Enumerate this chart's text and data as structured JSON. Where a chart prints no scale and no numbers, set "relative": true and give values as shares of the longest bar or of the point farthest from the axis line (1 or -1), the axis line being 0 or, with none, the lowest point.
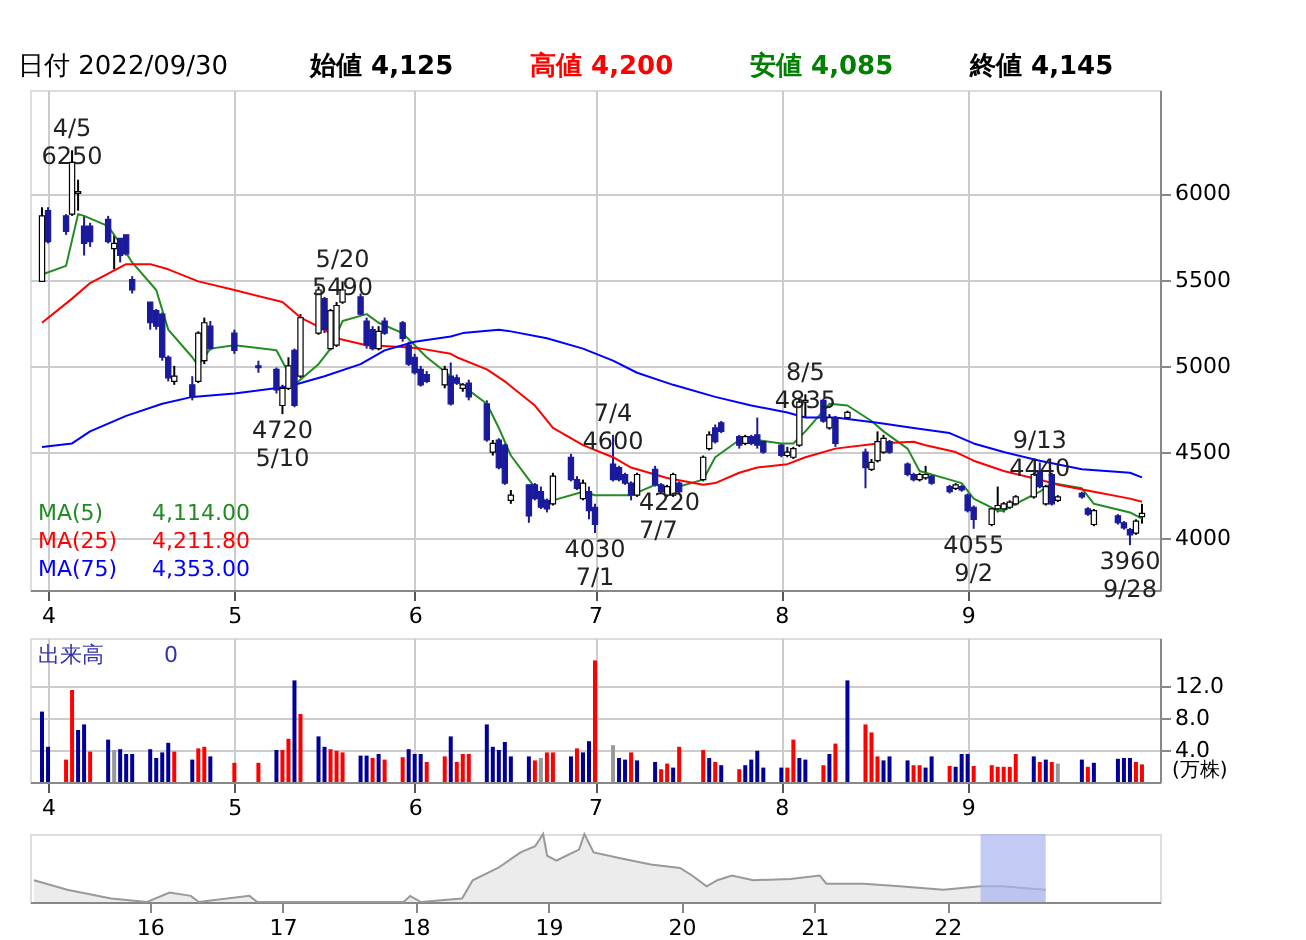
{
  "chart_data": [
    {
      "type": "candlestick",
      "title": "日付 2022/09/30",
      "annotations": [
        "始値 4,125",
        "高値 4,200",
        "安値 4,085",
        "終値 4,145",
        {
          "text": "4/5\n6250",
          "x": "2022-04-05",
          "y": 6250
        },
        {
          "text": "4720\n5/10",
          "x": "2022-05-10",
          "y": 4720
        },
        {
          "text": "5/20\n5490",
          "x": "2022-05-20",
          "y": 5490
        },
        {
          "text": "4030\n7/1",
          "x": "2022-07-01",
          "y": 4030
        },
        {
          "text": "7/4\n4600",
          "x": "2022-07-04",
          "y": 4600
        },
        {
          "text": "4220\n7/7",
          "x": "2022-07-07",
          "y": 4220
        },
        {
          "text": "8/5\n4835",
          "x": "2022-08-05",
          "y": 4835
        },
        {
          "text": "4055\n9/2",
          "x": "2022-09-02",
          "y": 4055
        },
        {
          "text": "9/13\n4440",
          "x": "2022-09-13",
          "y": 4440
        },
        {
          "text": "3960\n9/28",
          "x": "2022-09-28",
          "y": 3960
        },
        "4,114.00",
        "4,211.80",
        "4,353.00"
      ],
      "xlim": [
        "2022-03-29",
        "2022-10-03"
      ],
      "x": [
        "2022-03-31",
        "2022-04-01",
        "2022-04-04",
        "2022-04-05",
        "2022-04-06",
        "2022-04-07",
        "2022-04-08",
        "2022-04-11",
        "2022-04-12",
        "2022-04-13",
        "2022-04-14",
        "2022-04-15",
        "2022-04-18",
        "2022-04-19",
        "2022-04-20",
        "2022-04-21",
        "2022-04-22",
        "2022-04-25",
        "2022-04-26",
        "2022-04-27",
        "2022-04-28",
        "2022-05-02",
        "2022-05-06",
        "2022-05-09",
        "2022-05-10",
        "2022-05-11",
        "2022-05-12",
        "2022-05-13",
        "2022-05-16",
        "2022-05-17",
        "2022-05-18",
        "2022-05-19",
        "2022-05-20",
        "2022-05-23",
        "2022-05-24",
        "2022-05-25",
        "2022-05-26",
        "2022-05-27",
        "2022-05-30",
        "2022-05-31",
        "2022-06-01",
        "2022-06-02",
        "2022-06-03",
        "2022-06-06",
        "2022-06-07",
        "2022-06-08",
        "2022-06-09",
        "2022-06-10",
        "2022-06-13",
        "2022-06-14",
        "2022-06-15",
        "2022-06-16",
        "2022-06-17",
        "2022-06-20",
        "2022-06-21",
        "2022-06-22",
        "2022-06-23",
        "2022-06-24",
        "2022-06-27",
        "2022-06-28",
        "2022-06-29",
        "2022-06-30",
        "2022-07-01",
        "2022-07-04",
        "2022-07-05",
        "2022-07-06",
        "2022-07-07",
        "2022-07-08",
        "2022-07-11",
        "2022-07-12",
        "2022-07-13",
        "2022-07-14",
        "2022-07-15",
        "2022-07-19",
        "2022-07-20",
        "2022-07-21",
        "2022-07-22",
        "2022-07-25",
        "2022-07-26",
        "2022-07-27",
        "2022-07-28",
        "2022-07-29",
        "2022-08-01",
        "2022-08-02",
        "2022-08-03",
        "2022-08-04",
        "2022-08-05",
        "2022-08-08",
        "2022-08-09",
        "2022-08-10",
        "2022-08-12",
        "2022-08-15",
        "2022-08-16",
        "2022-08-17",
        "2022-08-18",
        "2022-08-19",
        "2022-08-22",
        "2022-08-23",
        "2022-08-24",
        "2022-08-25",
        "2022-08-26",
        "2022-08-29",
        "2022-08-30",
        "2022-08-31",
        "2022-09-01",
        "2022-09-02",
        "2022-09-05",
        "2022-09-06",
        "2022-09-07",
        "2022-09-08",
        "2022-09-09",
        "2022-09-12",
        "2022-09-13",
        "2022-09-14",
        "2022-09-15",
        "2022-09-16",
        "2022-09-20",
        "2022-09-21",
        "2022-09-22",
        "2022-09-26",
        "2022-09-27",
        "2022-09-28",
        "2022-09-29",
        "2022-09-30"
      ],
      "ohlc": [
        [
          5490,
          5920,
          5490,
          5870
        ],
        [
          5900,
          5920,
          5710,
          5720
        ],
        [
          5870,
          5880,
          5760,
          5780
        ],
        [
          5880,
          6250,
          5870,
          6180
        ],
        [
          6000,
          6080,
          5900,
          6010
        ],
        [
          5810,
          5870,
          5640,
          5710
        ],
        [
          5810,
          5830,
          5690,
          5720
        ],
        [
          5850,
          5870,
          5710,
          5720
        ],
        [
          5680,
          5760,
          5560,
          5710
        ],
        [
          5740,
          5740,
          5600,
          5640
        ],
        [
          5760,
          5760,
          5640,
          5650
        ],
        [
          5500,
          5520,
          5420,
          5440
        ],
        [
          5370,
          5370,
          5210,
          5250
        ],
        [
          5320,
          5330,
          5210,
          5230
        ],
        [
          5300,
          5310,
          5030,
          5050
        ],
        [
          5050,
          5060,
          4910,
          4930
        ],
        [
          4910,
          5000,
          4890,
          4940
        ],
        [
          4890,
          4940,
          4800,
          4820
        ],
        [
          4910,
          5200,
          4900,
          5190
        ],
        [
          5030,
          5280,
          5010,
          5250
        ],
        [
          5230,
          5260,
          5090,
          5100
        ],
        [
          5190,
          5210,
          5070,
          5090
        ],
        [
          5000,
          5030,
          4960,
          4990
        ],
        [
          4980,
          4990,
          4840,
          4860
        ],
        [
          4770,
          4890,
          4720,
          4870
        ],
        [
          4870,
          5050,
          4860,
          5000
        ],
        [
          5090,
          5100,
          4760,
          4770
        ],
        [
          4940,
          5300,
          4930,
          5280
        ],
        [
          5190,
          5460,
          5180,
          5440
        ],
        [
          5390,
          5400,
          5190,
          5210
        ],
        [
          5100,
          5330,
          5090,
          5320
        ],
        [
          5120,
          5370,
          5110,
          5350
        ],
        [
          5370,
          5490,
          5360,
          5440
        ],
        [
          5400,
          5420,
          5290,
          5300
        ],
        [
          5260,
          5280,
          5100,
          5120
        ],
        [
          5210,
          5230,
          5090,
          5100
        ],
        [
          5100,
          5230,
          5090,
          5200
        ],
        [
          5260,
          5280,
          5180,
          5190
        ],
        [
          5250,
          5260,
          5140,
          5160
        ],
        [
          5120,
          5140,
          5000,
          5010
        ],
        [
          5050,
          5070,
          4950,
          4960
        ],
        [
          4980,
          5000,
          4880,
          4890
        ],
        [
          4950,
          4970,
          4900,
          4910
        ],
        [
          4890,
          5000,
          4870,
          4980
        ],
        [
          4940,
          5020,
          4770,
          4780
        ],
        [
          4930,
          4950,
          4890,
          4900
        ],
        [
          4870,
          4900,
          4850,
          4890
        ],
        [
          4900,
          4920,
          4800,
          4820
        ],
        [
          4780,
          4800,
          4560,
          4570
        ],
        [
          4500,
          4570,
          4480,
          4550
        ],
        [
          4570,
          4580,
          4400,
          4410
        ],
        [
          4540,
          4550,
          4310,
          4320
        ],
        [
          4220,
          4280,
          4200,
          4250
        ],
        [
          4310,
          4310,
          4090,
          4130
        ],
        [
          4310,
          4320,
          4220,
          4230
        ],
        [
          4270,
          4300,
          4170,
          4180
        ],
        [
          4220,
          4230,
          4150,
          4170
        ],
        [
          4200,
          4380,
          4190,
          4360
        ],
        [
          4470,
          4490,
          4330,
          4340
        ],
        [
          4340,
          4360,
          4280,
          4290
        ],
        [
          4230,
          4340,
          4220,
          4320
        ],
        [
          4270,
          4300,
          4110,
          4160
        ],
        [
          4180,
          4200,
          4030,
          4080
        ],
        [
          4430,
          4600,
          4330,
          4340
        ],
        [
          4410,
          4420,
          4330,
          4340
        ],
        [
          4370,
          4380,
          4310,
          4320
        ],
        [
          4320,
          4330,
          4220,
          4250
        ],
        [
          4250,
          4380,
          4240,
          4370
        ],
        [
          4400,
          4420,
          4300,
          4310
        ],
        [
          4310,
          4320,
          4260,
          4270
        ],
        [
          4250,
          4310,
          4240,
          4300
        ],
        [
          4250,
          4380,
          4240,
          4370
        ],
        [
          4320,
          4330,
          4260,
          4270
        ],
        [
          4340,
          4480,
          4330,
          4470
        ],
        [
          4520,
          4620,
          4510,
          4600
        ],
        [
          4640,
          4660,
          4550,
          4560
        ],
        [
          4670,
          4680,
          4610,
          4620
        ],
        [
          4590,
          4600,
          4520,
          4540
        ],
        [
          4550,
          4600,
          4540,
          4590
        ],
        [
          4590,
          4600,
          4540,
          4550
        ],
        [
          4600,
          4700,
          4520,
          4540
        ],
        [
          4560,
          4570,
          4490,
          4500
        ],
        [
          4540,
          4550,
          4470,
          4480
        ],
        [
          4480,
          4530,
          4470,
          4500
        ],
        [
          4470,
          4530,
          4460,
          4520
        ],
        [
          4540,
          4810,
          4530,
          4790
        ],
        [
          4790,
          4835,
          4700,
          4800
        ],
        [
          4800,
          4810,
          4670,
          4680
        ],
        [
          4640,
          4720,
          4630,
          4700
        ],
        [
          4700,
          4710,
          4530,
          4550
        ],
        [
          4700,
          4740,
          4690,
          4730
        ],
        [
          4500,
          4520,
          4290,
          4410
        ],
        [
          4400,
          4460,
          4390,
          4440
        ],
        [
          4450,
          4620,
          4440,
          4560
        ],
        [
          4500,
          4600,
          4490,
          4580
        ],
        [
          4560,
          4570,
          4490,
          4500
        ],
        [
          4430,
          4440,
          4360,
          4370
        ],
        [
          4370,
          4380,
          4330,
          4340
        ],
        [
          4340,
          4380,
          4330,
          4370
        ],
        [
          4350,
          4420,
          4340,
          4370
        ],
        [
          4360,
          4370,
          4310,
          4320
        ],
        [
          4300,
          4310,
          4260,
          4270
        ],
        [
          4290,
          4320,
          4280,
          4310
        ],
        [
          4300,
          4310,
          4270,
          4280
        ],
        [
          4250,
          4260,
          4150,
          4160
        ],
        [
          4180,
          4190,
          4055,
          4110
        ],
        [
          4080,
          4170,
          4070,
          4170
        ],
        [
          4170,
          4300,
          4150,
          4190
        ],
        [
          4170,
          4210,
          4150,
          4200
        ],
        [
          4180,
          4220,
          4170,
          4210
        ],
        [
          4200,
          4250,
          4190,
          4240
        ],
        [
          4240,
          4380,
          4230,
          4370
        ],
        [
          4390,
          4440,
          4290,
          4300
        ],
        [
          4200,
          4310,
          4190,
          4300
        ],
        [
          4370,
          4380,
          4190,
          4200
        ],
        [
          4220,
          4250,
          4210,
          4240
        ],
        [
          4260,
          4270,
          4230,
          4240
        ],
        [
          4170,
          4180,
          4130,
          4140
        ],
        [
          4080,
          4170,
          4070,
          4160
        ],
        [
          4130,
          4140,
          4080,
          4090
        ],
        [
          4090,
          4100,
          4050,
          4060
        ],
        [
          4050,
          4060,
          3960,
          4020
        ],
        [
          4030,
          4110,
          4020,
          4100
        ],
        [
          4125,
          4200,
          4085,
          4145
        ]
      ],
      "series": [
        {
          "name": "MA(5)",
          "type": "line",
          "color": "#228b22",
          "x": [
            "2022-03-31",
            "2022-04-04",
            "2022-04-06",
            "2022-04-07",
            "2022-04-11",
            "2022-04-13",
            "2022-04-15",
            "2022-04-19",
            "2022-04-21",
            "2022-04-25",
            "2022-04-26",
            "2022-04-28",
            "2022-05-02",
            "2022-05-09",
            "2022-05-11",
            "2022-05-12",
            "2022-05-16",
            "2022-05-18",
            "2022-05-20",
            "2022-05-24",
            "2022-05-26",
            "2022-05-30",
            "2022-06-01",
            "2022-06-03",
            "2022-06-07",
            "2022-06-08",
            "2022-06-13",
            "2022-06-15",
            "2022-06-17",
            "2022-06-20",
            "2022-06-23",
            "2022-06-24",
            "2022-06-29",
            "2022-07-01",
            "2022-07-05",
            "2022-07-07",
            "2022-07-11",
            "2022-07-14",
            "2022-07-19",
            "2022-07-21",
            "2022-07-25",
            "2022-07-28",
            "2022-08-01",
            "2022-08-03",
            "2022-08-05",
            "2022-08-09",
            "2022-08-12",
            "2022-08-16",
            "2022-08-18",
            "2022-08-22",
            "2022-08-24",
            "2022-08-29",
            "2022-08-31",
            "2022-09-02",
            "2022-09-06",
            "2022-09-07",
            "2022-09-09",
            "2022-09-13",
            "2022-09-15",
            "2022-09-20",
            "2022-09-22",
            "2022-09-28",
            "2022-09-30"
          ],
          "values": [
            5530,
            5580,
            5880,
            5870,
            5810,
            5710,
            5600,
            5440,
            5210,
            5050,
            5000,
            5100,
            5120,
            5090,
            4960,
            4890,
            5010,
            5100,
            5260,
            5300,
            5250,
            5190,
            5120,
            5050,
            4940,
            4910,
            4780,
            4640,
            4480,
            4340,
            4200,
            4220,
            4270,
            4250,
            4250,
            4250,
            4310,
            4290,
            4340,
            4470,
            4570,
            4570,
            4550,
            4550,
            4620,
            4780,
            4770,
            4680,
            4620,
            4520,
            4390,
            4340,
            4320,
            4230,
            4160,
            4160,
            4200,
            4270,
            4320,
            4290,
            4200,
            4150,
            4114
          ]
        },
        {
          "name": "MA(25)",
          "type": "line",
          "color": "#ff0000",
          "x": [
            "2022-03-31",
            "2022-04-05",
            "2022-04-08",
            "2022-04-14",
            "2022-04-18",
            "2022-04-21",
            "2022-04-26",
            "2022-05-02",
            "2022-05-10",
            "2022-05-13",
            "2022-05-17",
            "2022-05-19",
            "2022-05-24",
            "2022-05-30",
            "2022-06-02",
            "2022-06-07",
            "2022-06-08",
            "2022-06-13",
            "2022-06-16",
            "2022-06-21",
            "2022-06-24",
            "2022-06-29",
            "2022-07-04",
            "2022-07-07",
            "2022-07-13",
            "2022-07-19",
            "2022-07-21",
            "2022-07-25",
            "2022-07-28",
            "2022-08-02",
            "2022-08-05",
            "2022-08-10",
            "2022-08-17",
            "2022-08-23",
            "2022-08-25",
            "2022-08-30",
            "2022-09-02",
            "2022-09-07",
            "2022-09-13",
            "2022-09-16",
            "2022-09-22",
            "2022-09-28",
            "2022-09-30"
          ],
          "values": [
            5250,
            5390,
            5480,
            5590,
            5590,
            5560,
            5490,
            5440,
            5370,
            5280,
            5210,
            5160,
            5120,
            5110,
            5100,
            5070,
            5050,
            4980,
            4910,
            4770,
            4640,
            4540,
            4470,
            4410,
            4350,
            4310,
            4320,
            4380,
            4410,
            4430,
            4470,
            4520,
            4550,
            4560,
            4540,
            4500,
            4450,
            4390,
            4340,
            4310,
            4270,
            4230,
            4211.8
          ]
        },
        {
          "name": "MA(75)",
          "type": "line",
          "color": "#0000ff",
          "x": [
            "2022-03-31",
            "2022-04-05",
            "2022-04-08",
            "2022-04-14",
            "2022-04-20",
            "2022-04-25",
            "2022-05-02",
            "2022-05-11",
            "2022-05-17",
            "2022-05-23",
            "2022-05-27",
            "2022-06-01",
            "2022-06-07",
            "2022-06-09",
            "2022-06-15",
            "2022-06-17",
            "2022-06-23",
            "2022-06-29",
            "2022-07-04",
            "2022-07-08",
            "2022-07-14",
            "2022-07-21",
            "2022-07-27",
            "2022-08-02",
            "2022-08-05",
            "2022-08-10",
            "2022-08-17",
            "2022-08-23",
            "2022-08-29",
            "2022-09-02",
            "2022-09-07",
            "2022-09-13",
            "2022-09-20",
            "2022-09-28",
            "2022-09-30"
          ],
          "values": [
            4530,
            4550,
            4620,
            4710,
            4780,
            4820,
            4840,
            4880,
            4940,
            5010,
            5090,
            5140,
            5170,
            5190,
            5210,
            5200,
            5160,
            5100,
            5030,
            4960,
            4890,
            4820,
            4770,
            4730,
            4700,
            4700,
            4670,
            4640,
            4610,
            4550,
            4500,
            4450,
            4400,
            4380,
            4353
          ]
        }
      ],
      "ylim": [
        3700,
        6600
      ],
      "yticks": [
        4000,
        4500,
        5000,
        5500,
        6000
      ],
      "xticks": [
        {
          "value": "2022-04-01",
          "label": "4"
        },
        {
          "value": "2022-05-02",
          "label": "5"
        },
        {
          "value": "2022-06-01",
          "label": "6"
        },
        {
          "value": "2022-07-01",
          "label": "7"
        },
        {
          "value": "2022-08-01",
          "label": "8"
        },
        {
          "value": "2022-09-01",
          "label": "9"
        }
      ],
      "grid": true,
      "legend": "bottom left"
    },
    {
      "type": "bar",
      "title": "出来高",
      "annotations": [
        "0"
      ],
      "ylabel": "(万株)",
      "x": [
        "2022-03-31",
        "2022-04-01",
        "2022-04-04",
        "2022-04-05",
        "2022-04-06",
        "2022-04-07",
        "2022-04-08",
        "2022-04-11",
        "2022-04-12",
        "2022-04-13",
        "2022-04-14",
        "2022-04-15",
        "2022-04-18",
        "2022-04-19",
        "2022-04-20",
        "2022-04-21",
        "2022-04-22",
        "2022-04-25",
        "2022-04-26",
        "2022-04-27",
        "2022-04-28",
        "2022-05-02",
        "2022-05-06",
        "2022-05-09",
        "2022-05-10",
        "2022-05-11",
        "2022-05-12",
        "2022-05-13",
        "2022-05-16",
        "2022-05-17",
        "2022-05-18",
        "2022-05-19",
        "2022-05-20",
        "2022-05-23",
        "2022-05-24",
        "2022-05-25",
        "2022-05-26",
        "2022-05-27",
        "2022-05-30",
        "2022-05-31",
        "2022-06-01",
        "2022-06-02",
        "2022-06-03",
        "2022-06-06",
        "2022-06-07",
        "2022-06-08",
        "2022-06-09",
        "2022-06-10",
        "2022-06-13",
        "2022-06-14",
        "2022-06-15",
        "2022-06-16",
        "2022-06-17",
        "2022-06-20",
        "2022-06-21",
        "2022-06-22",
        "2022-06-23",
        "2022-06-24",
        "2022-06-27",
        "2022-06-28",
        "2022-06-29",
        "2022-06-30",
        "2022-07-01",
        "2022-07-04",
        "2022-07-05",
        "2022-07-06",
        "2022-07-07",
        "2022-07-08",
        "2022-07-11",
        "2022-07-12",
        "2022-07-13",
        "2022-07-14",
        "2022-07-15",
        "2022-07-19",
        "2022-07-20",
        "2022-07-21",
        "2022-07-22",
        "2022-07-25",
        "2022-07-26",
        "2022-07-27",
        "2022-07-28",
        "2022-07-29",
        "2022-08-01",
        "2022-08-02",
        "2022-08-03",
        "2022-08-04",
        "2022-08-05",
        "2022-08-08",
        "2022-08-09",
        "2022-08-10",
        "2022-08-12",
        "2022-08-15",
        "2022-08-16",
        "2022-08-17",
        "2022-08-18",
        "2022-08-19",
        "2022-08-22",
        "2022-08-23",
        "2022-08-24",
        "2022-08-25",
        "2022-08-26",
        "2022-08-29",
        "2022-08-30",
        "2022-08-31",
        "2022-09-01",
        "2022-09-02",
        "2022-09-05",
        "2022-09-06",
        "2022-09-07",
        "2022-09-08",
        "2022-09-09",
        "2022-09-12",
        "2022-09-13",
        "2022-09-14",
        "2022-09-15",
        "2022-09-16",
        "2022-09-20",
        "2022-09-21",
        "2022-09-22",
        "2022-09-26",
        "2022-09-27",
        "2022-09-28",
        "2022-09-29",
        "2022-09-30"
      ],
      "values": [
        8.8,
        4.4,
        2.8,
        11.5,
        6.5,
        7.2,
        3.8,
        5.3,
        4.0,
        4.1,
        3.5,
        3.5,
        4.1,
        3.0,
        3.7,
        4.9,
        3.8,
        2.8,
        4.2,
        4.4,
        3.2,
        2.4,
        2.4,
        4.0,
        4.0,
        5.4,
        12.7,
        8.5,
        5.7,
        4.4,
        4.1,
        3.9,
        3.7,
        3.3,
        3.3,
        3.0,
        3.5,
        2.8,
        3.1,
        4.1,
        3.5,
        3.5,
        2.5,
        3.2,
        5.7,
        2.5,
        3.5,
        3.5,
        7.2,
        4.4,
        4.0,
        5.0,
        3.2,
        3.2,
        2.7,
        3.0,
        3.7,
        3.7,
        3.2,
        4.2,
        3.7,
        5.1,
        15.2,
        4.6,
        3.0,
        2.8,
        3.7,
        2.7,
        2.5,
        1.6,
        2.3,
        1.8,
        4.4,
        4.0,
        3.0,
        2.5,
        2.1,
        1.6,
        2.1,
        2.8,
        3.9,
        1.8,
        1.8,
        1.8,
        5.3,
        3.0,
        2.8,
        2.1,
        3.5,
        4.8,
        12.7,
        7.2,
        6.2,
        3.2,
        2.7,
        3.2,
        2.7,
        2.1,
        2.1,
        1.8,
        3.2,
        2.0,
        1.9,
        3.5,
        3.5,
        2.0,
        2.1,
        1.9,
        1.9,
        1.9,
        3.5,
        3.2,
        2.5,
        2.8,
        2.5,
        2.3,
        2.8,
        1.9,
        2.4,
        2.9,
        3.0,
        3.0,
        2.5,
        2.2
      ],
      "xlim": [
        "2022-03-29",
        "2022-10-03"
      ],
      "colors": [
        "#000099",
        "#000099",
        "#ff0000",
        "#ff0000",
        "#000099",
        "#000099",
        "#ff0000",
        "#000099",
        "#999999",
        "#000099",
        "#000099",
        "#000099",
        "#000099",
        "#000099",
        "#000099",
        "#000099",
        "#ff0000",
        "#000099",
        "#ff0000",
        "#ff0000",
        "#000099",
        "#ff0000",
        "#ff0000",
        "#000099",
        "#ff0000",
        "#ff0000",
        "#000099",
        "#ff0000",
        "#000099",
        "#000099",
        "#ff0000",
        "#ff0000",
        "#ff0000",
        "#000099",
        "#000099",
        "#ff0000",
        "#000099",
        "#ff0000",
        "#ff0000",
        "#000099",
        "#000099",
        "#000099",
        "#ff0000",
        "#ff0000",
        "#000099",
        "#ff0000",
        "#ff0000",
        "#ff0000",
        "#000099",
        "#000099",
        "#000099",
        "#000099",
        "#000099",
        "#000099",
        "#ff0000",
        "#999999",
        "#ff0000",
        "#ff0000",
        "#000099",
        "#ff0000",
        "#000099",
        "#000099",
        "#ff0000",
        "#999999",
        "#000099",
        "#000099",
        "#ff0000",
        "#000099",
        "#000099",
        "#ff0000",
        "#ff0000",
        "#000099",
        "#ff0000",
        "#ff0000",
        "#000099",
        "#ff0000",
        "#000099",
        "#ff0000",
        "#000099",
        "#000099",
        "#000099",
        "#000099",
        "#000099",
        "#ff0000",
        "#ff0000",
        "#000099",
        "#000099",
        "#ff0000",
        "#000099",
        "#ff0000",
        "#000099",
        "#ff0000",
        "#ff0000",
        "#ff0000",
        "#000099",
        "#000099",
        "#000099",
        "#ff0000",
        "#ff0000",
        "#000099",
        "#000099",
        "#ff0000",
        "#000099",
        "#000099",
        "#000099",
        "#ff0000",
        "#ff0000",
        "#ff0000",
        "#ff0000",
        "#ff0000",
        "#ff0000",
        "#000099",
        "#ff0000",
        "#000099",
        "#ff0000",
        "#999999",
        "#000099",
        "#ff0000",
        "#000099",
        "#000099",
        "#000099",
        "#000099",
        "#ff0000",
        "#ff0000"
      ],
      "ylim": [
        0,
        18
      ],
      "yticks": [
        {
          "value": 4,
          "label": "4.0"
        },
        {
          "value": 8,
          "label": "8.0"
        },
        {
          "value": 12,
          "label": "12.0"
        }
      ],
      "xticks": [
        {
          "value": "2022-04-01",
          "label": "4"
        },
        {
          "value": "2022-05-02",
          "label": "5"
        },
        {
          "value": "2022-06-01",
          "label": "6"
        },
        {
          "value": "2022-07-01",
          "label": "7"
        },
        {
          "value": "2022-08-01",
          "label": "8"
        },
        {
          "value": "2022-09-01",
          "label": "9"
        }
      ],
      "grid": true
    },
    {
      "type": "area",
      "relative": true,
      "tick_labels": "x",
      "x": [
        2015.13,
        2015.38,
        2015.71,
        2015.98,
        2016.15,
        2016.31,
        2016.37,
        2016.75,
        2016.81,
        2017.91,
        2017.96,
        2018.04,
        2018.35,
        2018.43,
        2018.62,
        2018.79,
        2018.9,
        2018.96,
        2018.99,
        2019.06,
        2019.23,
        2019.27,
        2019.34,
        2019.55,
        2019.77,
        2019.99,
        2020.08,
        2020.19,
        2020.27,
        2020.38,
        2020.54,
        2020.82,
        2021.04,
        2021.09,
        2021.37,
        2021.64,
        2021.97,
        2022.25,
        2022.41,
        2022.74
      ],
      "series": [
        {
          "color": "#999999",
          "values": [
            0.32,
            0.18,
            0.05,
            0,
            0.14,
            0.09,
            0,
            0.09,
            0,
            0,
            0.09,
            0,
            0.05,
            0.32,
            0.5,
            0.73,
            0.82,
            1,
            0.68,
            0.61,
            0.77,
            1,
            0.73,
            0.64,
            0.55,
            0.5,
            0.39,
            0.23,
            0.32,
            0.39,
            0.32,
            0.34,
            0.39,
            0.27,
            0.27,
            0.23,
            0.18,
            0.23,
            0.23,
            0.18
          ]
        }
      ],
      "xlim": [
        2015.1,
        2023.6
      ],
      "xticks": [
        {
          "value": 2016,
          "label": "16"
        },
        {
          "value": 2017,
          "label": "17"
        },
        {
          "value": 2018,
          "label": "18"
        },
        {
          "value": 2019,
          "label": "19"
        },
        {
          "value": 2020,
          "label": "20"
        },
        {
          "value": 2021,
          "label": "21"
        },
        {
          "value": 2022,
          "label": "22"
        }
      ],
      "bands": [
        {
          "axis": "x",
          "from": 2022.25,
          "to": 2022.74,
          "color": "#aab4f0"
        }
      ]
    }
  ]
}
